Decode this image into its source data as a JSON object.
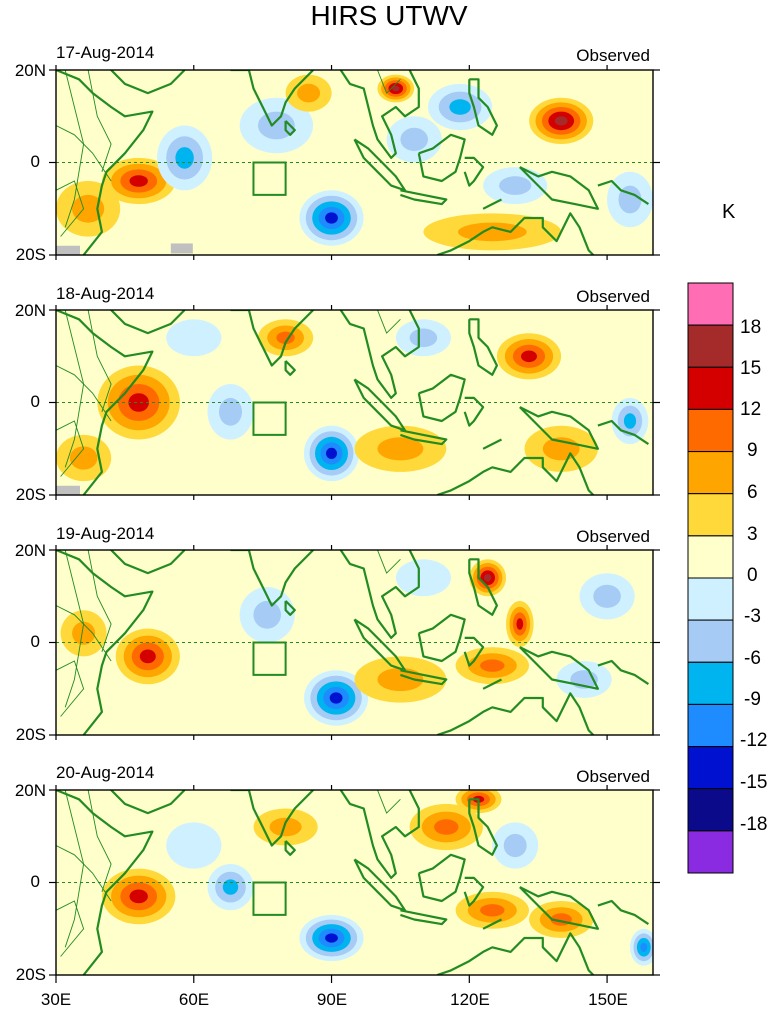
{
  "title": "HIRS UTWV",
  "colors": {
    "coast": "#228b22",
    "box": "#228b22",
    "equator": "#228b22",
    "missing": "#c0c0c0"
  },
  "chart_data": {
    "type": "heatmap",
    "title": "HIRS UTWV",
    "unit_label": "K",
    "x_range": [
      30,
      160
    ],
    "y_range": [
      -20,
      20
    ],
    "x_ticks": [
      {
        "value": 30,
        "label": "30E"
      },
      {
        "value": 60,
        "label": "60E"
      },
      {
        "value": 90,
        "label": "90E"
      },
      {
        "value": 120,
        "label": "120E"
      },
      {
        "value": 150,
        "label": "150E"
      }
    ],
    "y_ticks": [
      {
        "value": 20,
        "label": "20N"
      },
      {
        "value": 0,
        "label": "0"
      },
      {
        "value": -20,
        "label": "20S"
      }
    ],
    "colorbar": {
      "levels": [
        "18",
        "15",
        "12",
        "9",
        "6",
        "3",
        "0",
        "-3",
        "-6",
        "-9",
        "-12",
        "-15",
        "-18"
      ],
      "colors": [
        "#ff6eb4",
        "#a52a2a",
        "#d40000",
        "#ff6a00",
        "#ffa500",
        "#ffd93a",
        "#ffffcc",
        "#cff1ff",
        "#a6cbf5",
        "#00b4f0",
        "#1e8cff",
        "#0012d0",
        "#0a0a8a",
        "#8a2be2"
      ]
    },
    "panels": [
      {
        "date": "17-Aug-2014",
        "label": "Observed",
        "anomalies": [
          {
            "lon": 48,
            "lat": -4,
            "rx": 8,
            "ry": 5,
            "level": 4
          },
          {
            "lon": 37,
            "lat": -10,
            "rx": 7,
            "ry": 6,
            "level": 2
          },
          {
            "lon": 58,
            "lat": 1,
            "rx": 6,
            "ry": 7,
            "level": -3
          },
          {
            "lon": 90,
            "lat": -12,
            "rx": 7,
            "ry": 6,
            "level": -5
          },
          {
            "lon": 78,
            "lat": 8,
            "rx": 8,
            "ry": 6,
            "level": -2
          },
          {
            "lon": 104,
            "lat": 16,
            "rx": 4,
            "ry": 3,
            "level": 5
          },
          {
            "lon": 108,
            "lat": 5,
            "rx": 6,
            "ry": 5,
            "level": -2
          },
          {
            "lon": 118,
            "lat": 12,
            "rx": 7,
            "ry": 5,
            "level": -3
          },
          {
            "lon": 140,
            "lat": 9,
            "rx": 7,
            "ry": 5,
            "level": 5
          },
          {
            "lon": 130,
            "lat": -5,
            "rx": 7,
            "ry": 4,
            "level": -2
          },
          {
            "lon": 125,
            "lat": -15,
            "rx": 15,
            "ry": 4,
            "level": 2
          },
          {
            "lon": 155,
            "lat": -8,
            "rx": 5,
            "ry": 6,
            "level": -2
          },
          {
            "lon": 85,
            "lat": 15,
            "rx": 5,
            "ry": 4,
            "level": 2
          }
        ]
      },
      {
        "date": "18-Aug-2014",
        "label": "Observed",
        "anomalies": [
          {
            "lon": 48,
            "lat": 0,
            "rx": 9,
            "ry": 8,
            "level": 4
          },
          {
            "lon": 36,
            "lat": -12,
            "rx": 6,
            "ry": 5,
            "level": 2
          },
          {
            "lon": 68,
            "lat": -2,
            "rx": 5,
            "ry": 6,
            "level": -2
          },
          {
            "lon": 90,
            "lat": -11,
            "rx": 6,
            "ry": 6,
            "level": -5
          },
          {
            "lon": 80,
            "lat": 14,
            "rx": 6,
            "ry": 4,
            "level": 3
          },
          {
            "lon": 110,
            "lat": 14,
            "rx": 6,
            "ry": 4,
            "level": -2
          },
          {
            "lon": 133,
            "lat": 10,
            "rx": 7,
            "ry": 5,
            "level": 4
          },
          {
            "lon": 105,
            "lat": -10,
            "rx": 10,
            "ry": 5,
            "level": 2
          },
          {
            "lon": 140,
            "lat": -10,
            "rx": 8,
            "ry": 5,
            "level": 2
          },
          {
            "lon": 155,
            "lat": -4,
            "rx": 4,
            "ry": 5,
            "level": -3
          },
          {
            "lon": 60,
            "lat": 14,
            "rx": 6,
            "ry": 4,
            "level": -1
          }
        ]
      },
      {
        "date": "19-Aug-2014",
        "label": "Observed",
        "anomalies": [
          {
            "lon": 50,
            "lat": -3,
            "rx": 7,
            "ry": 6,
            "level": 4
          },
          {
            "lon": 36,
            "lat": 2,
            "rx": 5,
            "ry": 5,
            "level": 2
          },
          {
            "lon": 91,
            "lat": -12,
            "rx": 7,
            "ry": 6,
            "level": -5
          },
          {
            "lon": 76,
            "lat": 6,
            "rx": 6,
            "ry": 6,
            "level": -2
          },
          {
            "lon": 124,
            "lat": 14,
            "rx": 4,
            "ry": 4,
            "level": 5
          },
          {
            "lon": 131,
            "lat": 4,
            "rx": 3,
            "ry": 5,
            "level": 4
          },
          {
            "lon": 125,
            "lat": -5,
            "rx": 8,
            "ry": 4,
            "level": 3
          },
          {
            "lon": 105,
            "lat": -8,
            "rx": 10,
            "ry": 5,
            "level": 2
          },
          {
            "lon": 150,
            "lat": 10,
            "rx": 6,
            "ry": 5,
            "level": -2
          },
          {
            "lon": 145,
            "lat": -8,
            "rx": 6,
            "ry": 4,
            "level": -2
          },
          {
            "lon": 110,
            "lat": 14,
            "rx": 6,
            "ry": 4,
            "level": -1
          }
        ]
      },
      {
        "date": "20-Aug-2014",
        "label": "Observed",
        "anomalies": [
          {
            "lon": 48,
            "lat": -3,
            "rx": 8,
            "ry": 6,
            "level": 4
          },
          {
            "lon": 68,
            "lat": -1,
            "rx": 5,
            "ry": 5,
            "level": -3
          },
          {
            "lon": 90,
            "lat": -12,
            "rx": 7,
            "ry": 5,
            "level": -5
          },
          {
            "lon": 80,
            "lat": 12,
            "rx": 7,
            "ry": 4,
            "level": 2
          },
          {
            "lon": 115,
            "lat": 12,
            "rx": 8,
            "ry": 5,
            "level": 3
          },
          {
            "lon": 122,
            "lat": 18,
            "rx": 5,
            "ry": 3,
            "level": 4
          },
          {
            "lon": 125,
            "lat": -6,
            "rx": 8,
            "ry": 4,
            "level": 3
          },
          {
            "lon": 140,
            "lat": -8,
            "rx": 7,
            "ry": 4,
            "level": 3
          },
          {
            "lon": 158,
            "lat": -14,
            "rx": 3,
            "ry": 4,
            "level": -4
          },
          {
            "lon": 130,
            "lat": 8,
            "rx": 5,
            "ry": 5,
            "level": -2
          },
          {
            "lon": 60,
            "lat": 8,
            "rx": 6,
            "ry": 5,
            "level": -1
          }
        ]
      }
    ]
  }
}
